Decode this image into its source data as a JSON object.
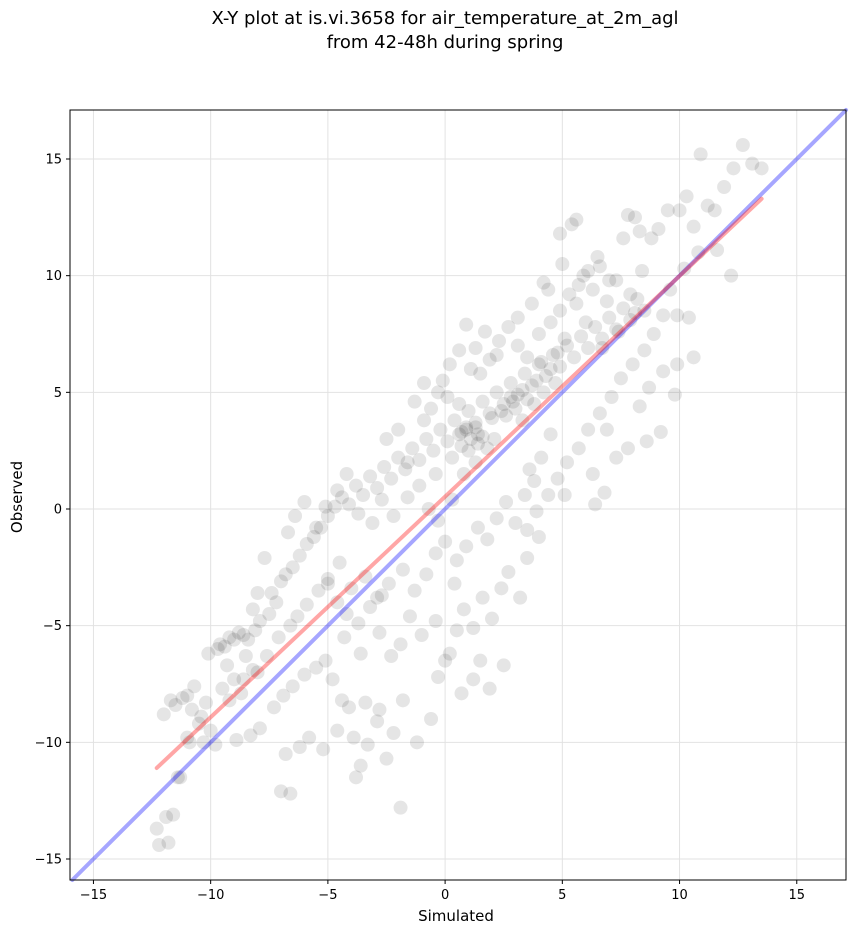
{
  "chart_data": {
    "type": "scatter",
    "title": "X-Y plot at is.vi.3658 for air_temperature_at_2m_agl",
    "subtitle": "from 42-48h during spring",
    "xlabel": "Simulated",
    "ylabel": "Observed",
    "xlim": [
      -16,
      17.1
    ],
    "ylim": [
      -15.9,
      17.1
    ],
    "xticks": [
      -15,
      -10,
      -5,
      0,
      5,
      10,
      15
    ],
    "yticks": [
      -15,
      -10,
      -5,
      0,
      5,
      10,
      15
    ],
    "xtick_labels": [
      "−15",
      "−10",
      "−5",
      "0",
      "5",
      "10",
      "15"
    ],
    "ytick_labels": [
      "−15",
      "−10",
      "−5",
      "0",
      "5",
      "10",
      "15"
    ],
    "grid": true,
    "point_color": "#000000",
    "point_opacity": 0.1,
    "points": [
      [
        -12.3,
        -13.7
      ],
      [
        -12.2,
        -14.4
      ],
      [
        -11.8,
        -14.3
      ],
      [
        -11.6,
        -13.1
      ],
      [
        -11.9,
        -13.2
      ],
      [
        -11.4,
        -11.5
      ],
      [
        -11.3,
        -11.5
      ],
      [
        -11.0,
        -9.8
      ],
      [
        -10.9,
        -10.0
      ],
      [
        -10.3,
        -10.0
      ],
      [
        -10.5,
        -9.2
      ],
      [
        -12.0,
        -8.8
      ],
      [
        -11.7,
        -8.2
      ],
      [
        -11.0,
        -8.0
      ],
      [
        -10.8,
        -8.6
      ],
      [
        -10.2,
        -8.3
      ],
      [
        -9.5,
        -7.7
      ],
      [
        -9.0,
        -7.3
      ],
      [
        -8.6,
        -7.3
      ],
      [
        -8.2,
        -6.9
      ],
      [
        -9.3,
        -6.7
      ],
      [
        -8.5,
        -6.3
      ],
      [
        -9.6,
        -5.8
      ],
      [
        -9.2,
        -5.5
      ],
      [
        -8.8,
        -5.3
      ],
      [
        -8.4,
        -5.6
      ],
      [
        -8.1,
        -5.2
      ],
      [
        -7.9,
        -4.8
      ],
      [
        -7.5,
        -4.5
      ],
      [
        -7.2,
        -4.0
      ],
      [
        -8.2,
        -4.3
      ],
      [
        -7.4,
        -3.6
      ],
      [
        -7.0,
        -3.1
      ],
      [
        -6.8,
        -2.8
      ],
      [
        -6.5,
        -2.5
      ],
      [
        -6.2,
        -2.0
      ],
      [
        -5.9,
        -1.5
      ],
      [
        -5.6,
        -1.2
      ],
      [
        -5.3,
        -0.8
      ],
      [
        -5.0,
        -0.3
      ],
      [
        -4.7,
        0.1
      ],
      [
        -4.4,
        0.5
      ],
      [
        -4.1,
        0.2
      ],
      [
        -3.8,
        1.0
      ],
      [
        -3.5,
        0.6
      ],
      [
        -3.2,
        1.4
      ],
      [
        -2.9,
        0.9
      ],
      [
        -2.6,
        1.8
      ],
      [
        -2.3,
        1.3
      ],
      [
        -2.0,
        2.2
      ],
      [
        -1.7,
        1.7
      ],
      [
        -1.4,
        2.6
      ],
      [
        -1.1,
        2.1
      ],
      [
        -0.8,
        3.0
      ],
      [
        -0.5,
        2.5
      ],
      [
        -0.2,
        3.4
      ],
      [
        0.1,
        2.9
      ],
      [
        0.4,
        3.8
      ],
      [
        0.7,
        3.3
      ],
      [
        1.0,
        4.2
      ],
      [
        1.3,
        3.7
      ],
      [
        1.6,
        4.6
      ],
      [
        1.9,
        4.1
      ],
      [
        2.2,
        5.0
      ],
      [
        2.5,
        4.5
      ],
      [
        2.8,
        5.4
      ],
      [
        3.1,
        4.9
      ],
      [
        3.4,
        5.8
      ],
      [
        3.7,
        5.3
      ],
      [
        4.0,
        6.2
      ],
      [
        4.3,
        5.7
      ],
      [
        4.6,
        6.6
      ],
      [
        4.9,
        6.1
      ],
      [
        5.2,
        7.0
      ],
      [
        5.5,
        6.5
      ],
      [
        5.8,
        7.4
      ],
      [
        6.1,
        6.9
      ],
      [
        6.4,
        7.8
      ],
      [
        6.7,
        7.3
      ],
      [
        7.0,
        8.2
      ],
      [
        7.3,
        7.7
      ],
      [
        7.6,
        8.6
      ],
      [
        7.9,
        8.1
      ],
      [
        8.2,
        9.0
      ],
      [
        8.5,
        8.5
      ],
      [
        -9.8,
        -10.1
      ],
      [
        -8.9,
        -9.9
      ],
      [
        -8.3,
        -9.7
      ],
      [
        -7.9,
        -9.4
      ],
      [
        -7.3,
        -8.5
      ],
      [
        -6.9,
        -8.0
      ],
      [
        -6.5,
        -7.6
      ],
      [
        -6.0,
        -7.1
      ],
      [
        -5.5,
        -6.8
      ],
      [
        -5.1,
        -6.5
      ],
      [
        -4.8,
        -7.3
      ],
      [
        -4.4,
        -8.2
      ],
      [
        -3.9,
        -9.8
      ],
      [
        -3.6,
        -11.0
      ],
      [
        -3.8,
        -11.5
      ],
      [
        -3.3,
        -10.1
      ],
      [
        -2.9,
        -9.1
      ],
      [
        -2.5,
        -10.7
      ],
      [
        -2.2,
        -9.6
      ],
      [
        -1.8,
        -8.2
      ],
      [
        -1.9,
        -12.8
      ],
      [
        -1.2,
        -10.0
      ],
      [
        -0.6,
        -9.0
      ],
      [
        -0.3,
        -7.2
      ],
      [
        0.2,
        -6.2
      ],
      [
        0.7,
        -7.9
      ],
      [
        1.2,
        -7.3
      ],
      [
        1.5,
        -6.5
      ],
      [
        1.9,
        -7.7
      ],
      [
        2.5,
        -6.7
      ],
      [
        -7.0,
        -12.1
      ],
      [
        -6.6,
        -12.2
      ],
      [
        -6.8,
        -10.5
      ],
      [
        -6.2,
        -10.2
      ],
      [
        -5.8,
        -9.8
      ],
      [
        -5.2,
        -10.3
      ],
      [
        -4.6,
        -9.5
      ],
      [
        -4.1,
        -8.5
      ],
      [
        -3.4,
        -8.3
      ],
      [
        -2.8,
        -8.6
      ],
      [
        -8.0,
        -3.6
      ],
      [
        -7.7,
        -2.1
      ],
      [
        -6.7,
        -1.0
      ],
      [
        -6.4,
        -0.3
      ],
      [
        -6.0,
        0.3
      ],
      [
        -5.5,
        -0.8
      ],
      [
        -5.1,
        0.1
      ],
      [
        -4.6,
        0.8
      ],
      [
        -4.2,
        1.5
      ],
      [
        -3.7,
        -0.2
      ],
      [
        -3.1,
        -0.6
      ],
      [
        -2.7,
        0.4
      ],
      [
        -2.2,
        -0.3
      ],
      [
        -1.6,
        0.5
      ],
      [
        -1.1,
        1.0
      ],
      [
        -0.7,
        0.0
      ],
      [
        -0.3,
        -0.5
      ],
      [
        0.3,
        0.4
      ],
      [
        0.8,
        1.5
      ],
      [
        1.3,
        2.0
      ],
      [
        -5.0,
        -3.0
      ],
      [
        -4.5,
        -2.3
      ],
      [
        -4.0,
        -3.4
      ],
      [
        -3.4,
        -2.9
      ],
      [
        -2.9,
        -3.8
      ],
      [
        -2.4,
        -3.2
      ],
      [
        -1.8,
        -2.6
      ],
      [
        -1.3,
        -3.5
      ],
      [
        -0.8,
        -2.8
      ],
      [
        -0.4,
        -1.9
      ],
      [
        0.0,
        -1.4
      ],
      [
        0.5,
        -2.2
      ],
      [
        0.9,
        -1.6
      ],
      [
        1.4,
        -0.8
      ],
      [
        1.8,
        -1.3
      ],
      [
        2.2,
        -0.4
      ],
      [
        2.6,
        0.3
      ],
      [
        3.0,
        -0.6
      ],
      [
        3.4,
        0.6
      ],
      [
        3.8,
        1.2
      ],
      [
        0.4,
        -3.2
      ],
      [
        0.8,
        -4.3
      ],
      [
        1.2,
        -5.1
      ],
      [
        1.6,
        -3.8
      ],
      [
        2.0,
        -4.7
      ],
      [
        2.4,
        -3.4
      ],
      [
        2.7,
        -2.7
      ],
      [
        3.2,
        -3.8
      ],
      [
        3.5,
        -2.1
      ],
      [
        4.0,
        -1.2
      ],
      [
        -1.5,
        -4.6
      ],
      [
        -1.0,
        -5.4
      ],
      [
        -0.4,
        -4.8
      ],
      [
        0.0,
        -6.5
      ],
      [
        0.5,
        -5.2
      ],
      [
        -2.8,
        -5.3
      ],
      [
        -2.3,
        -6.3
      ],
      [
        -1.9,
        -5.8
      ],
      [
        -3.6,
        -6.2
      ],
      [
        -4.3,
        -5.5
      ],
      [
        -0.1,
        5.5
      ],
      [
        -0.9,
        5.4
      ],
      [
        -1.3,
        4.6
      ],
      [
        -0.6,
        4.3
      ],
      [
        0.1,
        4.8
      ],
      [
        0.6,
        4.5
      ],
      [
        1.1,
        6.0
      ],
      [
        1.5,
        5.8
      ],
      [
        1.9,
        6.4
      ],
      [
        2.3,
        7.2
      ],
      [
        2.7,
        7.8
      ],
      [
        3.1,
        7.0
      ],
      [
        3.5,
        6.5
      ],
      [
        4.0,
        7.5
      ],
      [
        4.5,
        8.0
      ],
      [
        4.9,
        8.5
      ],
      [
        5.3,
        9.2
      ],
      [
        5.7,
        9.6
      ],
      [
        6.1,
        10.2
      ],
      [
        6.5,
        10.8
      ],
      [
        4.2,
        9.7
      ],
      [
        4.9,
        11.8
      ],
      [
        5.4,
        12.2
      ],
      [
        5.6,
        12.4
      ],
      [
        5.0,
        10.5
      ],
      [
        5.9,
        10.0
      ],
      [
        6.6,
        10.4
      ],
      [
        7.0,
        9.8
      ],
      [
        7.6,
        11.6
      ],
      [
        7.8,
        12.6
      ],
      [
        8.1,
        12.5
      ],
      [
        8.3,
        11.9
      ],
      [
        8.8,
        11.6
      ],
      [
        9.1,
        12.0
      ],
      [
        9.5,
        12.8
      ],
      [
        10.0,
        12.8
      ],
      [
        10.3,
        13.4
      ],
      [
        10.6,
        12.1
      ],
      [
        10.9,
        15.2
      ],
      [
        11.2,
        13.0
      ],
      [
        11.5,
        12.8
      ],
      [
        11.9,
        13.8
      ],
      [
        12.3,
        14.6
      ],
      [
        12.7,
        15.6
      ],
      [
        13.1,
        14.8
      ],
      [
        13.5,
        14.6
      ],
      [
        12.2,
        10.0
      ],
      [
        11.6,
        11.1
      ],
      [
        10.8,
        11.0
      ],
      [
        10.2,
        10.3
      ],
      [
        9.6,
        9.4
      ],
      [
        9.3,
        8.3
      ],
      [
        8.9,
        7.5
      ],
      [
        8.5,
        6.8
      ],
      [
        8.0,
        6.2
      ],
      [
        7.5,
        5.6
      ],
      [
        7.1,
        4.8
      ],
      [
        6.6,
        4.1
      ],
      [
        6.1,
        3.4
      ],
      [
        5.7,
        2.6
      ],
      [
        5.2,
        2.0
      ],
      [
        4.8,
        1.3
      ],
      [
        4.4,
        0.6
      ],
      [
        3.9,
        -0.1
      ],
      [
        3.5,
        -0.9
      ],
      [
        6.9,
        3.4
      ],
      [
        7.3,
        2.2
      ],
      [
        7.8,
        2.6
      ],
      [
        6.3,
        1.5
      ],
      [
        6.8,
        0.7
      ],
      [
        6.4,
        0.2
      ],
      [
        5.1,
        0.6
      ],
      [
        4.5,
        3.2
      ],
      [
        4.1,
        2.2
      ],
      [
        3.6,
        1.7
      ],
      [
        9.2,
        3.3
      ],
      [
        8.6,
        2.9
      ],
      [
        8.3,
        4.4
      ],
      [
        8.7,
        5.2
      ],
      [
        9.3,
        5.9
      ],
      [
        9.8,
        4.9
      ],
      [
        9.9,
        6.2
      ],
      [
        10.6,
        6.5
      ],
      [
        10.4,
        8.2
      ],
      [
        9.9,
        8.3
      ],
      [
        -2.5,
        3.0
      ],
      [
        -2.0,
        3.4
      ],
      [
        -1.6,
        2.0
      ],
      [
        -0.9,
        3.8
      ],
      [
        -0.4,
        1.5
      ],
      [
        0.3,
        2.2
      ],
      [
        0.9,
        3.5
      ],
      [
        1.4,
        3.2
      ],
      [
        2.0,
        3.9
      ],
      [
        2.4,
        4.2
      ],
      [
        2.9,
        4.6
      ],
      [
        3.3,
        3.8
      ],
      [
        3.8,
        4.5
      ],
      [
        4.2,
        5.0
      ],
      [
        4.7,
        5.4
      ],
      [
        0.9,
        7.9
      ],
      [
        0.6,
        6.8
      ],
      [
        1.3,
        6.9
      ],
      [
        0.2,
        6.2
      ],
      [
        -0.3,
        5.0
      ],
      [
        1.7,
        7.6
      ],
      [
        2.2,
        6.6
      ],
      [
        3.1,
        8.2
      ],
      [
        3.7,
        8.8
      ],
      [
        4.4,
        9.4
      ],
      [
        5.6,
        8.8
      ],
      [
        6.0,
        8.0
      ],
      [
        6.3,
        9.4
      ],
      [
        6.9,
        8.9
      ],
      [
        7.3,
        9.8
      ],
      [
        7.9,
        9.2
      ],
      [
        8.4,
        10.2
      ],
      [
        8.1,
        8.4
      ],
      [
        7.4,
        7.6
      ],
      [
        6.7,
        6.9
      ],
      [
        0.6,
        3.2
      ],
      [
        0.9,
        3.4
      ],
      [
        1.1,
        3.0
      ],
      [
        1.3,
        3.5
      ],
      [
        1.6,
        3.1
      ],
      [
        0.7,
        2.7
      ],
      [
        1.0,
        2.5
      ],
      [
        1.4,
        2.8
      ],
      [
        1.8,
        2.6
      ],
      [
        2.1,
        3.0
      ],
      [
        2.8,
        4.8
      ],
      [
        3.0,
        4.3
      ],
      [
        3.3,
        5.1
      ],
      [
        2.6,
        4.0
      ],
      [
        3.5,
        4.7
      ],
      [
        3.9,
        5.5
      ],
      [
        4.1,
        6.3
      ],
      [
        4.5,
        6.0
      ],
      [
        4.8,
        6.7
      ],
      [
        5.1,
        7.3
      ],
      [
        -10.1,
        -6.2
      ],
      [
        -9.7,
        -6.0
      ],
      [
        -9.4,
        -5.9
      ],
      [
        -9.0,
        -5.6
      ],
      [
        -8.6,
        -5.4
      ],
      [
        -10.7,
        -7.6
      ],
      [
        -11.2,
        -8.1
      ],
      [
        -11.5,
        -8.4
      ],
      [
        -10.4,
        -8.9
      ],
      [
        -10.0,
        -9.5
      ],
      [
        -9.2,
        -8.2
      ],
      [
        -8.7,
        -7.9
      ],
      [
        -8.0,
        -7.0
      ],
      [
        -7.6,
        -6.3
      ],
      [
        -7.1,
        -5.5
      ],
      [
        -6.6,
        -5.0
      ],
      [
        -6.3,
        -4.6
      ],
      [
        -5.9,
        -4.1
      ],
      [
        -5.4,
        -3.5
      ],
      [
        -5.0,
        -3.2
      ],
      [
        -4.6,
        -4.0
      ],
      [
        -4.2,
        -4.5
      ],
      [
        -3.7,
        -4.9
      ],
      [
        -3.2,
        -4.2
      ],
      [
        -2.7,
        -3.7
      ]
    ]
  }
}
